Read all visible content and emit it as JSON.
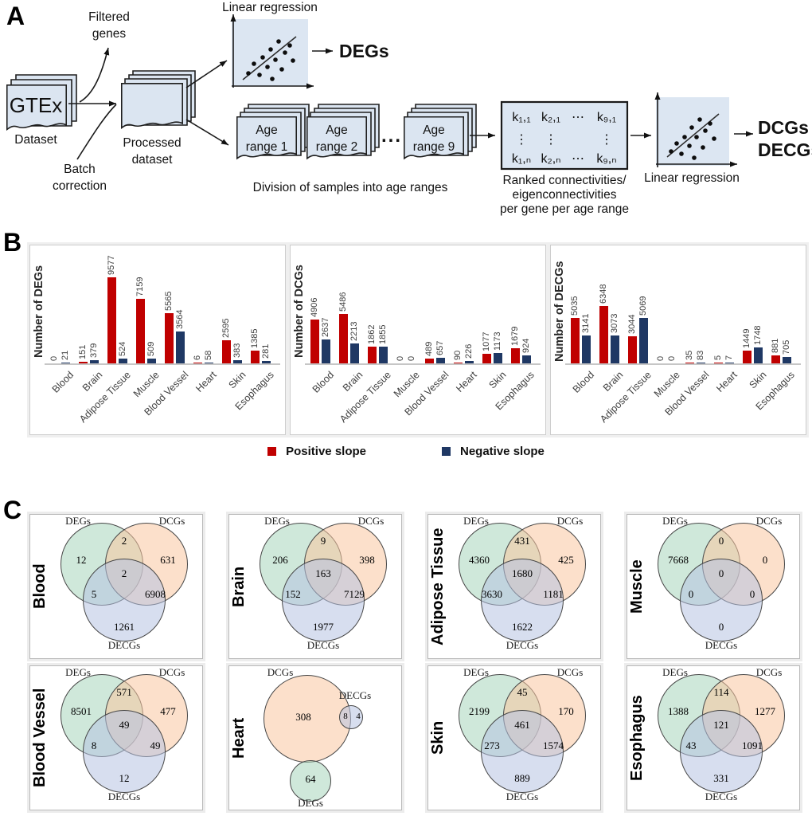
{
  "figure": {
    "panel_a_label": "A",
    "panel_b_label": "B",
    "panel_c_label": "C"
  },
  "panelA": {
    "gtex_label": "GTEx",
    "gtex_caption": "Dataset",
    "filtered_line1": "Filtered",
    "filtered_line2": "genes",
    "batch_line1": "Batch",
    "batch_line2": "correction",
    "processed_line1": "Processed",
    "processed_line2": "dataset",
    "linreg_top": "Linear regression",
    "degs_output": "DEGs",
    "age_stacks": [
      {
        "line1": "Age",
        "line2": "range 1"
      },
      {
        "line1": "Age",
        "line2": "range 2"
      },
      {
        "line1": "Age",
        "line2": "range 9"
      }
    ],
    "ellipsis": "...",
    "division_caption": "Division of samples into age ranges",
    "matrix": {
      "r1": [
        "k₁,₁",
        "k₂,₁",
        "⋯",
        "k₉,₁"
      ],
      "r2": [
        "k₁,ₙ",
        "k₂,ₙ",
        "⋯",
        "k₉,ₙ"
      ],
      "vdots": "⋮"
    },
    "matrix_caption_line1": "Ranked connectivities/",
    "matrix_caption_line2": "eigenconnectivities",
    "matrix_caption_line3": "per gene per age range",
    "linreg_bottom": "Linear regression",
    "dcgs_output": "DCGs",
    "decgs_output": "DECGs"
  },
  "chart_data": [
    {
      "type": "bar",
      "ylabel": "Number of DEGs",
      "categories": [
        "Blood",
        "Brain",
        "Adipose Tissue",
        "Muscle",
        "Blood Vessel",
        "Heart",
        "Skin",
        "Esophagus"
      ],
      "series": [
        {
          "name": "Positive slope",
          "color": "#c00000",
          "values": [
            0,
            151,
            9577,
            7159,
            5565,
            6,
            2595,
            1385
          ]
        },
        {
          "name": "Negative slope",
          "color": "#1f3864",
          "values": [
            21,
            379,
            524,
            509,
            3564,
            58,
            383,
            281
          ]
        }
      ],
      "ylim": [
        0,
        10000
      ],
      "grid": false,
      "legend_position": "bottom"
    },
    {
      "type": "bar",
      "ylabel": "Number of DCGs",
      "categories": [
        "Blood",
        "Brain",
        "Adipose Tissue",
        "Muscle",
        "Blood Vessel",
        "Heart",
        "Skin",
        "Esophagus"
      ],
      "series": [
        {
          "name": "Positive slope",
          "color": "#c00000",
          "values": [
            4906,
            5486,
            1862,
            0,
            489,
            90,
            1077,
            1679
          ]
        },
        {
          "name": "Negative slope",
          "color": "#1f3864",
          "values": [
            2637,
            2213,
            1855,
            0,
            657,
            226,
            1173,
            924
          ]
        }
      ],
      "ylim": [
        0,
        10000
      ],
      "grid": false,
      "legend_position": "bottom"
    },
    {
      "type": "bar",
      "ylabel": "Number of DECGs",
      "categories": [
        "Blood",
        "Brain",
        "Adipose Tissue",
        "Muscle",
        "Blood Vessel",
        "Heart",
        "Skin",
        "Esophagus"
      ],
      "series": [
        {
          "name": "Positive slope",
          "color": "#c00000",
          "values": [
            5035,
            6348,
            3044,
            0,
            35,
            5,
            1449,
            881
          ]
        },
        {
          "name": "Negative slope",
          "color": "#1f3864",
          "values": [
            3141,
            3073,
            5069,
            0,
            83,
            7,
            1748,
            705
          ]
        }
      ],
      "ylim": [
        0,
        10000
      ],
      "grid": false,
      "legend_position": "bottom"
    }
  ],
  "panelB": {
    "legend": [
      {
        "label": "Positive slope",
        "color": "#c00000"
      },
      {
        "label": "Negative slope",
        "color": "#1f3864"
      }
    ]
  },
  "panelC": {
    "set_labels": {
      "degs": "DEGs",
      "dcgs": "DCGs",
      "decgs": "DECGs"
    },
    "colors": {
      "degs_fill": "#a8d5bc",
      "dcgs_fill": "#f9c7a0",
      "decgs_fill": "#b7c3e2"
    },
    "venns": [
      {
        "tissue": "Blood",
        "type": "standard",
        "values": {
          "degs_only": 12,
          "degs_dcgs": 2,
          "dcgs_only": 631,
          "center": 2,
          "degs_decgs": 5,
          "dcgs_decgs": 6908,
          "decgs_only": 1261
        }
      },
      {
        "tissue": "Brain",
        "type": "standard",
        "values": {
          "degs_only": 206,
          "degs_dcgs": 9,
          "dcgs_only": 398,
          "center": 163,
          "degs_decgs": 152,
          "dcgs_decgs": 7129,
          "decgs_only": 1977
        }
      },
      {
        "tissue": "Adipose Tissue",
        "type": "standard",
        "values": {
          "degs_only": 4360,
          "degs_dcgs": 431,
          "dcgs_only": 425,
          "center": 1680,
          "degs_decgs": 3630,
          "dcgs_decgs": 1181,
          "decgs_only": 1622
        }
      },
      {
        "tissue": "Muscle",
        "type": "standard",
        "values": {
          "degs_only": 7668,
          "degs_dcgs": 0,
          "dcgs_only": 0,
          "center": 0,
          "degs_decgs": 0,
          "dcgs_decgs": 0,
          "decgs_only": 0
        }
      },
      {
        "tissue": "Blood Vessel",
        "type": "standard",
        "values": {
          "degs_only": 8501,
          "degs_dcgs": 571,
          "dcgs_only": 477,
          "center": 49,
          "degs_decgs": 8,
          "dcgs_decgs": 49,
          "decgs_only": 12
        }
      },
      {
        "tissue": "Heart",
        "type": "heart",
        "values": {
          "dcgs_only": 308,
          "dcgs_decgs": 8,
          "decgs_only": 4,
          "degs_only": 64
        }
      },
      {
        "tissue": "Skin",
        "type": "standard",
        "values": {
          "degs_only": 2199,
          "degs_dcgs": 45,
          "dcgs_only": 170,
          "center": 461,
          "degs_decgs": 273,
          "dcgs_decgs": 1574,
          "decgs_only": 889
        }
      },
      {
        "tissue": "Esophagus",
        "type": "standard",
        "values": {
          "degs_only": 1388,
          "degs_dcgs": 114,
          "dcgs_only": 1277,
          "center": 121,
          "degs_decgs": 43,
          "dcgs_decgs": 1091,
          "decgs_only": 331
        }
      }
    ]
  }
}
